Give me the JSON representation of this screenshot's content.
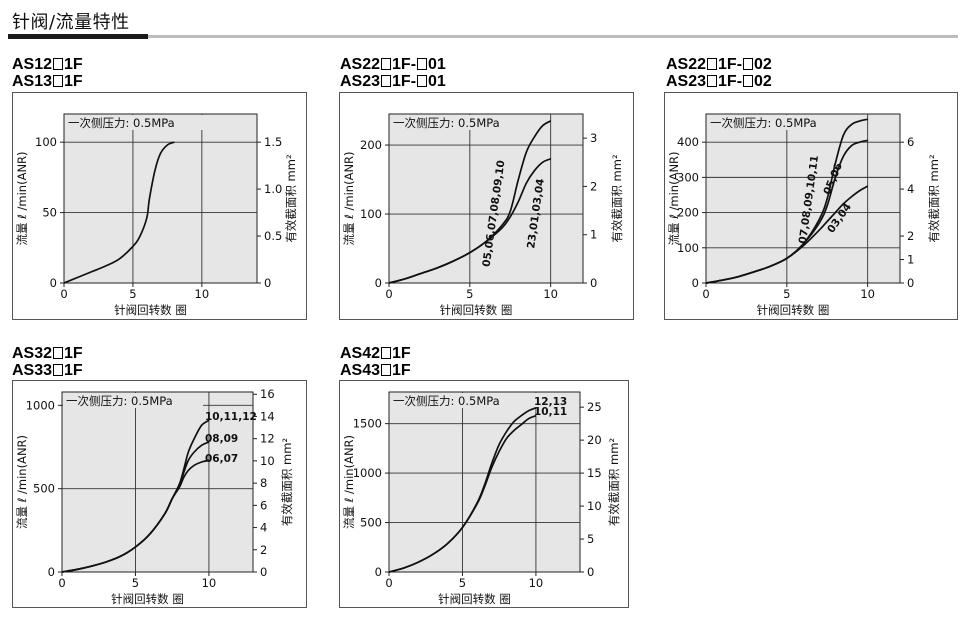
{
  "page": {
    "title": "针阀/流量特性"
  },
  "chart_data": [
    {
      "type": "line",
      "model_lines": [
        "AS12□1F",
        "AS13□1F"
      ],
      "pressure_label": "一次侧压力: 0.5MPa",
      "xlabel": "针阀回转数 圈",
      "ylabel": "流量 ℓ /min(ANR)",
      "y2label": "有效截面积 mm²",
      "xlim": [
        0,
        14
      ],
      "ylim": [
        0,
        120
      ],
      "y2lim": [
        0,
        1.8
      ],
      "x_ticks": [
        "0",
        "5",
        "10"
      ],
      "y_ticks": [
        "0",
        "50",
        "100"
      ],
      "y2_ticks": [
        "0",
        "0.5",
        "1.0",
        "1.5"
      ],
      "grid_x": [
        5,
        10
      ],
      "grid_y": [
        50,
        100
      ],
      "series": [
        {
          "name": "",
          "x": [
            0,
            1,
            2,
            3,
            4,
            5,
            5.5,
            6,
            6.2,
            6.6,
            7,
            7.5,
            8
          ],
          "y": [
            0,
            4,
            8,
            12,
            17,
            26,
            33,
            46,
            60,
            80,
            92,
            98,
            100
          ]
        }
      ],
      "series_labels": []
    },
    {
      "type": "line",
      "model_lines": [
        "AS22□1F-□01",
        "AS23□1F-□01"
      ],
      "pressure_label": "一次侧压力: 0.5MPa",
      "xlabel": "针阀回转数 圈",
      "ylabel": "流量 ℓ /min(ANR)",
      "y2label": "有效截面积 mm²",
      "xlim": [
        0,
        12
      ],
      "ylim": [
        0,
        245
      ],
      "y2lim": [
        0,
        3.5
      ],
      "x_ticks": [
        "0",
        "5",
        "10"
      ],
      "y_ticks": [
        "0",
        "100",
        "200"
      ],
      "y2_ticks": [
        "0",
        "1",
        "2",
        "3"
      ],
      "grid_x": [
        5,
        10
      ],
      "grid_y": [
        100,
        200
      ],
      "series": [
        {
          "name": "05,06,07,08,09,10",
          "x": [
            0,
            1,
            2,
            3,
            4,
            5,
            6,
            7,
            7.5,
            8,
            8.5,
            9,
            9.5,
            10
          ],
          "y": [
            0,
            6,
            14,
            22,
            32,
            44,
            60,
            84,
            104,
            150,
            190,
            212,
            228,
            235
          ]
        },
        {
          "name": "23,01,03,04",
          "x": [
            0,
            1,
            2,
            3,
            4,
            5,
            6,
            7,
            7.5,
            8,
            8.5,
            9,
            9.5,
            10
          ],
          "y": [
            0,
            6,
            14,
            22,
            32,
            44,
            60,
            80,
            96,
            118,
            145,
            163,
            175,
            180
          ]
        }
      ],
      "series_labels": [
        "05,06,07,08,09,10",
        "23,01,03,04"
      ]
    },
    {
      "type": "line",
      "model_lines": [
        "AS22□1F-□02",
        "AS23□1F-□02"
      ],
      "pressure_label": "一次侧压力: 0.5MPa",
      "xlabel": "针阀回转数 圈",
      "ylabel": "流量 ℓ /min(ANR)",
      "y2label": "有效截面积 mm²",
      "xlim": [
        0,
        12
      ],
      "ylim": [
        0,
        480
      ],
      "y2lim": [
        0,
        7.2
      ],
      "x_ticks": [
        "0",
        "5",
        "10"
      ],
      "y_ticks": [
        "0",
        "100",
        "200",
        "300",
        "400"
      ],
      "y2_ticks": [
        "0",
        "1",
        "2",
        "4",
        "6"
      ],
      "grid_x": [
        5,
        10
      ],
      "grid_y": [
        100,
        200,
        300,
        400
      ],
      "series": [
        {
          "name": "07,08,09,10,11",
          "x": [
            0,
            1,
            2,
            3,
            4,
            5,
            6,
            7,
            7.5,
            8,
            8.5,
            9,
            9.5,
            10
          ],
          "y": [
            0,
            8,
            18,
            32,
            48,
            70,
            110,
            180,
            240,
            340,
            420,
            450,
            460,
            465
          ]
        },
        {
          "name": "05,06",
          "x": [
            0,
            1,
            2,
            3,
            4,
            5,
            6,
            7,
            7.5,
            8,
            8.5,
            9,
            9.5,
            10
          ],
          "y": [
            0,
            8,
            18,
            32,
            48,
            70,
            110,
            170,
            220,
            300,
            360,
            390,
            400,
            405
          ]
        },
        {
          "name": "03,04",
          "x": [
            0,
            1,
            2,
            3,
            4,
            5,
            6,
            7,
            7.5,
            8,
            8.5,
            9,
            9.5,
            10
          ],
          "y": [
            0,
            8,
            18,
            32,
            48,
            70,
            105,
            150,
            175,
            200,
            225,
            245,
            262,
            275
          ]
        }
      ],
      "series_labels": [
        "07,08,09,10,11",
        "05,06",
        "03,04"
      ]
    },
    {
      "type": "line",
      "model_lines": [
        "AS32□1F",
        "AS33□1F"
      ],
      "pressure_label": "一次侧压力: 0.5MPa",
      "xlabel": "针阀回转数 圈",
      "ylabel": "流量 ℓ /min(ANR)",
      "y2label": "有效截面积 mm²",
      "xlim": [
        0,
        13
      ],
      "ylim": [
        0,
        1080
      ],
      "y2lim": [
        0,
        16.2
      ],
      "x_ticks": [
        "0",
        "5",
        "10"
      ],
      "y_ticks": [
        "0",
        "500",
        "1000"
      ],
      "y2_ticks": [
        "0",
        "2",
        "4",
        "6",
        "8",
        "10",
        "12",
        "14",
        "16"
      ],
      "grid_x": [
        5,
        10
      ],
      "grid_y": [
        500,
        1000
      ],
      "series": [
        {
          "name": "10,11,12",
          "x": [
            0,
            1,
            2,
            3,
            4,
            5,
            6,
            7,
            7.5,
            8,
            8.3,
            8.6,
            9,
            9.5,
            10
          ],
          "y": [
            0,
            15,
            35,
            60,
            95,
            150,
            230,
            350,
            440,
            530,
            620,
            720,
            800,
            880,
            910
          ]
        },
        {
          "name": "08,09",
          "x": [
            0,
            1,
            2,
            3,
            4,
            5,
            6,
            7,
            7.5,
            8,
            8.3,
            8.6,
            9,
            9.5,
            10
          ],
          "y": [
            0,
            15,
            35,
            60,
            95,
            150,
            230,
            350,
            440,
            520,
            600,
            670,
            720,
            760,
            780
          ]
        },
        {
          "name": "06,07",
          "x": [
            0,
            1,
            2,
            3,
            4,
            5,
            6,
            7,
            7.5,
            8,
            8.3,
            8.6,
            9,
            9.5,
            10
          ],
          "y": [
            0,
            15,
            35,
            60,
            95,
            150,
            230,
            350,
            440,
            510,
            570,
            610,
            640,
            660,
            670
          ]
        }
      ],
      "series_labels": [
        "10,11,12",
        "08,09",
        "06,07"
      ]
    },
    {
      "type": "line",
      "model_lines": [
        "AS42□1F",
        "AS43□1F"
      ],
      "pressure_label": "一次侧压力: 0.5MPa",
      "xlabel": "针阀回转数 圈",
      "ylabel": "流量 ℓ /min(ANR)",
      "y2label": "有效截面积 mm²",
      "xlim": [
        0,
        13
      ],
      "ylim": [
        0,
        1820
      ],
      "y2lim": [
        0,
        27.3
      ],
      "x_ticks": [
        "0",
        "5",
        "10"
      ],
      "y_ticks": [
        "0",
        "500",
        "1000",
        "1500"
      ],
      "y2_ticks": [
        "0",
        "5",
        "10",
        "15",
        "20",
        "25"
      ],
      "grid_x": [
        5,
        10
      ],
      "grid_y": [
        500,
        1000,
        1500
      ],
      "series": [
        {
          "name": "12,13",
          "x": [
            0,
            1,
            2,
            3,
            4,
            5,
            6,
            6.5,
            7,
            7.5,
            8,
            8.5,
            9,
            9.5,
            10
          ],
          "y": [
            0,
            40,
            100,
            180,
            290,
            450,
            700,
            880,
            1100,
            1290,
            1420,
            1520,
            1580,
            1630,
            1660
          ]
        },
        {
          "name": "10,11",
          "x": [
            0,
            1,
            2,
            3,
            4,
            5,
            6,
            6.5,
            7,
            7.5,
            8,
            8.5,
            9,
            9.5,
            10
          ],
          "y": [
            0,
            40,
            100,
            180,
            290,
            450,
            690,
            860,
            1060,
            1220,
            1350,
            1430,
            1490,
            1550,
            1580
          ]
        }
      ],
      "series_labels": [
        "12,13",
        "10,11"
      ]
    }
  ]
}
